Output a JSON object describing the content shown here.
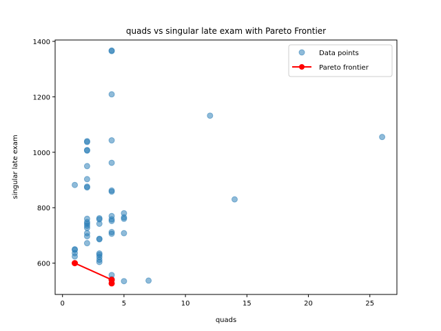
{
  "chart_data": {
    "type": "scatter",
    "title": "quads vs singular late exam with Pareto Frontier",
    "xlabel": "quads",
    "ylabel": "singular late exam",
    "xlim": [
      -0.6,
      27.2
    ],
    "ylim": [
      487,
      1405
    ],
    "xticks": [
      0,
      5,
      10,
      15,
      20,
      25
    ],
    "yticks": [
      600,
      800,
      1000,
      1200,
      1400
    ],
    "grid": false,
    "legend_position": "top-right",
    "colors": {
      "points": "#1f77b4",
      "frontier": "#ff0000"
    },
    "series": [
      {
        "name": "Data points",
        "points": [
          [
            1,
            882
          ],
          [
            1,
            650
          ],
          [
            1,
            648
          ],
          [
            1,
            636
          ],
          [
            1,
            624
          ],
          [
            2,
            1040
          ],
          [
            2,
            1037
          ],
          [
            2,
            1008
          ],
          [
            2,
            1006
          ],
          [
            2,
            950
          ],
          [
            2,
            903
          ],
          [
            2,
            876
          ],
          [
            2,
            873
          ],
          [
            2,
            760
          ],
          [
            2,
            748
          ],
          [
            2,
            742
          ],
          [
            2,
            735
          ],
          [
            2,
            727
          ],
          [
            2,
            708
          ],
          [
            2,
            697
          ],
          [
            2,
            672
          ],
          [
            3,
            762
          ],
          [
            3,
            758
          ],
          [
            3,
            742
          ],
          [
            3,
            688
          ],
          [
            3,
            686
          ],
          [
            3,
            635
          ],
          [
            3,
            630
          ],
          [
            3,
            622
          ],
          [
            3,
            612
          ],
          [
            3,
            604
          ],
          [
            4,
            1367
          ],
          [
            4,
            1365
          ],
          [
            4,
            1209
          ],
          [
            4,
            1043
          ],
          [
            4,
            962
          ],
          [
            4,
            862
          ],
          [
            4,
            858
          ],
          [
            4,
            770
          ],
          [
            4,
            758
          ],
          [
            4,
            752
          ],
          [
            4,
            712
          ],
          [
            4,
            706
          ],
          [
            4,
            557
          ],
          [
            4,
            542
          ],
          [
            4,
            538
          ],
          [
            5,
            780
          ],
          [
            5,
            765
          ],
          [
            5,
            760
          ],
          [
            5,
            708
          ],
          [
            5,
            535
          ],
          [
            7,
            537
          ],
          [
            12,
            1132
          ],
          [
            14,
            830
          ],
          [
            26,
            1055
          ]
        ]
      },
      {
        "name": "Pareto frontier",
        "points": [
          [
            1,
            600
          ],
          [
            4,
            540
          ],
          [
            4,
            527
          ]
        ]
      }
    ]
  }
}
